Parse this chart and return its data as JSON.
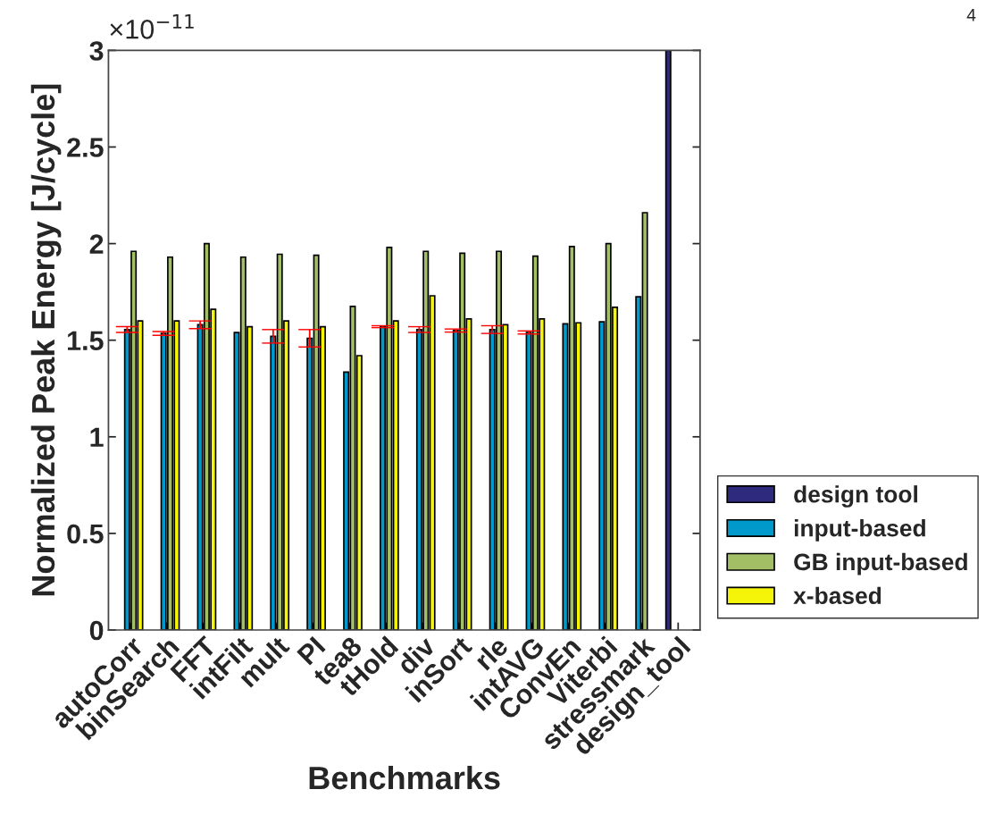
{
  "chart_data": {
    "type": "bar",
    "xlabel": "Benchmarks",
    "ylabel": "Normalized Peak Energy [J/cycle]",
    "categories": [
      "autoCorr",
      "binSearch",
      "FFT",
      "intFilt",
      "mult",
      "PI",
      "tea8",
      "tHold",
      "div",
      "inSort",
      "rle",
      "intAVG",
      "ConvEn",
      "Viterbi",
      "stressmark",
      "design_tool"
    ],
    "series": [
      {
        "name": "design tool",
        "color": "#2e2a7e",
        "values": [
          null,
          null,
          null,
          null,
          null,
          null,
          null,
          null,
          null,
          null,
          null,
          null,
          null,
          null,
          null,
          3.0
        ]
      },
      {
        "name": "input-based",
        "color": "#0099cc",
        "values": [
          1.555,
          1.535,
          1.58,
          1.54,
          1.52,
          1.51,
          1.335,
          1.57,
          1.555,
          1.55,
          1.555,
          1.54,
          1.585,
          1.595,
          1.725,
          null
        ],
        "errors": [
          0.015,
          0.01,
          0.02,
          null,
          0.035,
          0.045,
          null,
          0.005,
          0.015,
          0.008,
          0.02,
          0.008,
          null,
          null,
          null,
          null
        ]
      },
      {
        "name": "GB input-based",
        "color": "#a3bf66",
        "values": [
          1.96,
          1.93,
          2.0,
          1.93,
          1.945,
          1.94,
          1.675,
          1.98,
          1.96,
          1.95,
          1.96,
          1.935,
          1.985,
          2.0,
          2.16,
          null
        ]
      },
      {
        "name": "x-based",
        "color": "#f5f50a",
        "values": [
          1.6,
          1.6,
          1.66,
          1.57,
          1.6,
          1.57,
          1.42,
          1.6,
          1.73,
          1.61,
          1.58,
          1.61,
          1.59,
          1.67,
          null,
          null
        ]
      }
    ],
    "ylim": [
      0,
      3
    ],
    "yticks": [
      0,
      0.5,
      1,
      1.5,
      2,
      2.5,
      3
    ],
    "grid": false,
    "legend": "bottom right",
    "annotations": [
      "×10$^{−11}$",
      "4"
    ]
  }
}
